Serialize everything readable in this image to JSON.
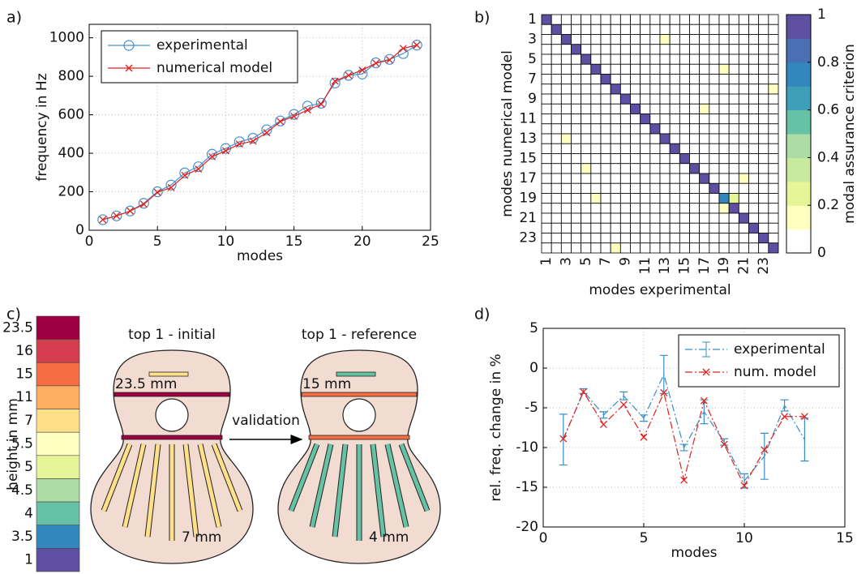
{
  "chart_data": [
    {
      "panel": "a)",
      "type": "line",
      "xlabel": "modes",
      "ylabel": "frequency in Hz",
      "x": [
        1,
        2,
        3,
        4,
        5,
        6,
        7,
        8,
        9,
        10,
        11,
        12,
        13,
        14,
        15,
        16,
        17,
        18,
        19,
        20,
        21,
        22,
        23,
        24
      ],
      "series": [
        {
          "name": "experimental",
          "color": "#4a8fc9",
          "marker": "o",
          "linestyle": "solid",
          "values": [
            55,
            75,
            100,
            140,
            200,
            235,
            298,
            330,
            395,
            425,
            460,
            478,
            522,
            568,
            602,
            645,
            660,
            765,
            805,
            812,
            870,
            888,
            918,
            962
          ]
        },
        {
          "name": "numerical model",
          "color": "#e3211c",
          "marker": "x",
          "linestyle": "solid",
          "values": [
            55,
            75,
            100,
            135,
            197,
            222,
            285,
            318,
            382,
            413,
            448,
            463,
            507,
            565,
            592,
            625,
            655,
            775,
            805,
            832,
            868,
            885,
            945,
            962
          ]
        }
      ],
      "xlim": [
        0,
        25
      ],
      "xticks": [
        0,
        5,
        10,
        15,
        20,
        25
      ],
      "ylim": [
        0,
        1070
      ],
      "yticks": [
        0,
        200,
        400,
        600,
        800,
        1000
      ],
      "grid": true,
      "legend": "upper left"
    },
    {
      "panel": "b)",
      "type": "heatmap",
      "xlabel": "modes experimental",
      "ylabel": "modes numerical model",
      "categories": [
        "1",
        null,
        "3",
        null,
        "5",
        null,
        "7",
        null,
        "9",
        null,
        "11",
        null,
        "13",
        null,
        "15",
        null,
        "17",
        null,
        "19",
        null,
        "21",
        null,
        "23",
        null
      ],
      "values": [
        [
          0.95,
          0,
          0,
          0,
          0,
          0,
          0,
          0,
          0,
          0,
          0,
          0,
          0,
          0,
          0,
          0,
          0,
          0,
          0,
          0,
          0,
          0,
          0,
          0
        ],
        [
          0,
          0.95,
          0,
          0,
          0,
          0,
          0,
          0,
          0,
          0,
          0,
          0,
          0,
          0,
          0,
          0,
          0,
          0,
          0,
          0,
          0,
          0,
          0,
          0
        ],
        [
          0,
          0,
          0.95,
          0,
          0,
          0,
          0,
          0,
          0,
          0,
          0,
          0,
          0.15,
          0,
          0,
          0,
          0,
          0,
          0,
          0,
          0,
          0,
          0,
          0
        ],
        [
          0,
          0,
          0,
          0.95,
          0,
          0,
          0,
          0,
          0,
          0,
          0,
          0,
          0,
          0,
          0,
          0,
          0,
          0,
          0,
          0,
          0,
          0,
          0,
          0
        ],
        [
          0,
          0,
          0,
          0,
          0.95,
          0,
          0,
          0,
          0,
          0,
          0,
          0,
          0,
          0,
          0,
          0,
          0,
          0,
          0,
          0,
          0,
          0,
          0,
          0
        ],
        [
          0,
          0,
          0,
          0,
          0,
          0.95,
          0,
          0,
          0,
          0,
          0,
          0,
          0,
          0,
          0,
          0,
          0,
          0,
          0.15,
          0,
          0,
          0,
          0,
          0
        ],
        [
          0,
          0,
          0,
          0,
          0,
          0,
          0.95,
          0,
          0,
          0,
          0,
          0,
          0,
          0,
          0,
          0,
          0,
          0,
          0,
          0,
          0,
          0,
          0,
          0
        ],
        [
          0,
          0,
          0,
          0,
          0,
          0,
          0,
          0.95,
          0,
          0,
          0,
          0,
          0,
          0,
          0,
          0,
          0,
          0,
          0,
          0,
          0,
          0,
          0,
          0.15
        ],
        [
          0,
          0,
          0,
          0,
          0,
          0,
          0,
          0,
          0.95,
          0,
          0,
          0,
          0,
          0,
          0,
          0,
          0,
          0,
          0,
          0,
          0,
          0,
          0,
          0
        ],
        [
          0,
          0,
          0,
          0,
          0,
          0,
          0,
          0,
          0,
          0.95,
          0,
          0,
          0,
          0,
          0,
          0,
          0.15,
          0,
          0,
          0,
          0,
          0,
          0,
          0
        ],
        [
          0,
          0,
          0,
          0,
          0,
          0,
          0,
          0,
          0,
          0,
          0.95,
          0,
          0,
          0,
          0,
          0,
          0,
          0,
          0,
          0,
          0,
          0,
          0,
          0
        ],
        [
          0,
          0,
          0,
          0,
          0,
          0,
          0,
          0,
          0,
          0,
          0,
          0.95,
          0,
          0,
          0,
          0,
          0,
          0,
          0,
          0,
          0,
          0,
          0,
          0
        ],
        [
          0,
          0,
          0.15,
          0,
          0,
          0,
          0,
          0,
          0,
          0,
          0,
          0,
          0.95,
          0,
          0,
          0,
          0,
          0,
          0,
          0,
          0,
          0,
          0,
          0
        ],
        [
          0,
          0,
          0,
          0,
          0,
          0,
          0,
          0,
          0,
          0,
          0,
          0,
          0,
          0.95,
          0,
          0,
          0,
          0,
          0,
          0,
          0,
          0,
          0,
          0
        ],
        [
          0,
          0,
          0,
          0,
          0,
          0,
          0,
          0,
          0,
          0,
          0,
          0,
          0,
          0,
          0.95,
          0,
          0,
          0,
          0,
          0,
          0,
          0,
          0,
          0
        ],
        [
          0,
          0,
          0,
          0,
          0.15,
          0,
          0,
          0,
          0,
          0,
          0,
          0,
          0,
          0,
          0,
          0.95,
          0,
          0,
          0,
          0,
          0,
          0,
          0,
          0
        ],
        [
          0,
          0,
          0,
          0,
          0,
          0,
          0,
          0,
          0,
          0,
          0,
          0,
          0,
          0,
          0,
          0,
          0.95,
          0,
          0,
          0,
          0.15,
          0,
          0,
          0
        ],
        [
          0,
          0,
          0,
          0,
          0,
          0,
          0,
          0,
          0,
          0,
          0,
          0,
          0,
          0,
          0,
          0,
          0,
          0.95,
          0,
          0,
          0,
          0,
          0,
          0
        ],
        [
          0,
          0,
          0,
          0,
          0,
          0.15,
          0,
          0,
          0,
          0,
          0,
          0,
          0,
          0,
          0,
          0,
          0,
          0,
          0.7,
          0.25,
          0,
          0,
          0,
          0
        ],
        [
          0,
          0,
          0,
          0,
          0,
          0,
          0,
          0,
          0,
          0,
          0,
          0,
          0,
          0,
          0,
          0,
          0,
          0,
          0.15,
          0.95,
          0,
          0,
          0,
          0
        ],
        [
          0,
          0,
          0,
          0,
          0,
          0,
          0,
          0,
          0,
          0,
          0,
          0,
          0,
          0,
          0,
          0,
          0,
          0,
          0,
          0,
          0.95,
          0,
          0,
          0
        ],
        [
          0,
          0,
          0,
          0,
          0,
          0,
          0,
          0,
          0,
          0,
          0,
          0,
          0,
          0,
          0,
          0,
          0,
          0,
          0,
          0,
          0,
          0.95,
          0,
          0
        ],
        [
          0,
          0,
          0,
          0,
          0,
          0,
          0,
          0,
          0,
          0,
          0,
          0,
          0,
          0,
          0,
          0,
          0,
          0,
          0,
          0,
          0,
          0,
          0.95,
          0
        ],
        [
          0,
          0,
          0,
          0,
          0,
          0,
          0,
          0.15,
          0,
          0,
          0,
          0,
          0,
          0,
          0,
          0,
          0,
          0,
          0,
          0,
          0,
          0,
          0,
          0.95
        ]
      ],
      "colorbar": {
        "label": "modal assurance criterion",
        "clim": [
          0,
          1
        ],
        "ticks": [
          0,
          0.2,
          0.4,
          0.6,
          0.8,
          1
        ],
        "colors": [
          "#ffffff",
          "#ffffbf",
          "#e6f598",
          "#c7e9a0",
          "#abdda4",
          "#66c2a5",
          "#3f9fb8",
          "#3288bd",
          "#4a6fb3",
          "#5e4fa2"
        ]
      }
    },
    {
      "panel": "d)",
      "type": "line",
      "xlabel": "modes",
      "ylabel": "rel. freq. change in %",
      "x": [
        1,
        2,
        3,
        4,
        5,
        6,
        7,
        8,
        9,
        10,
        11,
        12,
        13
      ],
      "series": [
        {
          "name": "experimental",
          "color": "#3a8dc6",
          "marker": "errorbar",
          "linestyle": "dashdot",
          "values": [
            -9,
            -2.9,
            -5.9,
            -3.5,
            -6.3,
            -0.8,
            -10,
            -5.5,
            -9.3,
            -14.2,
            -11.1,
            -4.7,
            -9
          ],
          "errors": [
            3.2,
            0.3,
            0.4,
            0.5,
            0.4,
            2.4,
            0.4,
            1.5,
            0.4,
            0.9,
            2.9,
            0.7,
            2.7
          ]
        },
        {
          "name": "num. model",
          "color": "#e3211c",
          "marker": "x",
          "linestyle": "dashdot",
          "values": [
            -8.9,
            -3,
            -7.1,
            -4.6,
            -8.7,
            -3.1,
            -14.1,
            -4.1,
            -9.6,
            -14.8,
            -10.3,
            -6.1,
            -6.1
          ]
        }
      ],
      "xlim": [
        0,
        15
      ],
      "xticks": [
        0,
        5,
        10,
        15
      ],
      "ylim": [
        -20,
        5
      ],
      "yticks": [
        -20,
        -15,
        -10,
        -5,
        0,
        5
      ],
      "grid": true,
      "legend": "upper right"
    }
  ],
  "diagram": {
    "panel": "c)",
    "scale_label": "height in mm",
    "levels": [
      {
        "label": "23.5",
        "color": "#9e0142"
      },
      {
        "label": "16",
        "color": "#d53e4f"
      },
      {
        "label": "15",
        "color": "#f46d43"
      },
      {
        "label": "11",
        "color": "#fdae61"
      },
      {
        "label": "7",
        "color": "#fee08b"
      },
      {
        "label": "5.5",
        "color": "#ffffbf"
      },
      {
        "label": "5",
        "color": "#e6f598"
      },
      {
        "label": "4.5",
        "color": "#abdda4"
      },
      {
        "label": "4",
        "color": "#66c2a5"
      },
      {
        "label": "3.5",
        "color": "#3288bd"
      },
      {
        "label": "1",
        "color": "#5e4fa2"
      }
    ],
    "tops": [
      {
        "title": "top 1 - initial",
        "bar_label": "23.5 mm",
        "fan_label": "7 mm"
      },
      {
        "title": "top 1 - reference",
        "bar_label": "15 mm",
        "fan_label": "4 mm"
      }
    ],
    "arrow_label": "validation"
  }
}
